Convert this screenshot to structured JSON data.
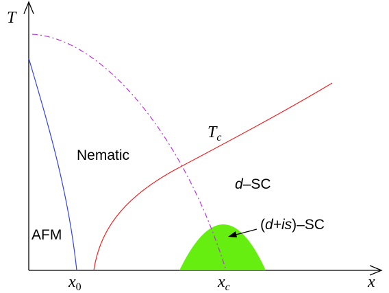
{
  "axes": {
    "y_label": "T",
    "x_label": "x"
  },
  "x_marks": [
    {
      "base": "x",
      "sub": "0"
    },
    {
      "base": "x",
      "sub": "c"
    }
  ],
  "curve_label": {
    "base": "T",
    "sub": "c"
  },
  "regions": {
    "nematic": "Nematic",
    "afm": "AFM",
    "d_sc": {
      "italic": "d",
      "rest": "–SC"
    },
    "dis_sc": {
      "open": "(",
      "italic": "d+is",
      "rest": ")–SC"
    }
  }
}
